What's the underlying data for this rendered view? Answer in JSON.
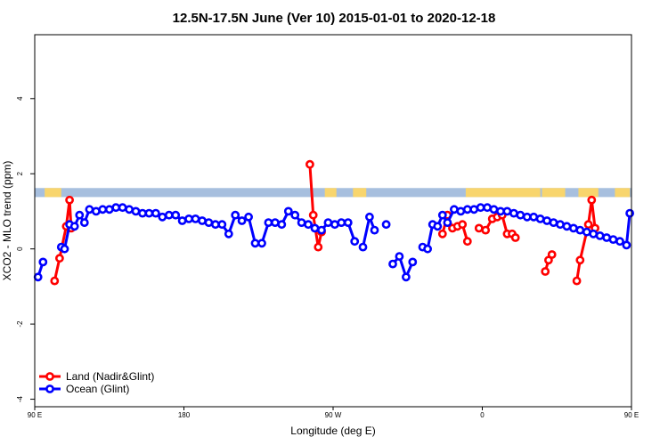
{
  "chart_data": {
    "type": "line",
    "title": "12.5N-17.5N June (Ver 10)   2015-01-01 to 2020-12-18",
    "xlabel": "Longitude (deg E)",
    "ylabel": "XCO2 - MLO trend (ppm)",
    "xlim": [
      90,
      450
    ],
    "ylim": [
      -4.2,
      5.7
    ],
    "x_ticks": [
      {
        "value": 90,
        "label": "90 E"
      },
      {
        "value": 180,
        "label": "180"
      },
      {
        "value": 270,
        "label": "90 W"
      },
      {
        "value": 360,
        "label": "0"
      },
      {
        "value": 450,
        "label": "90 E"
      }
    ],
    "y_ticks": [
      {
        "value": -4,
        "label": "-4"
      },
      {
        "value": -2,
        "label": "-2"
      },
      {
        "value": 0,
        "label": "0"
      },
      {
        "value": 2,
        "label": "2"
      },
      {
        "value": 4,
        "label": "4"
      }
    ],
    "land_band": {
      "y_range": [
        1.38,
        1.62
      ],
      "ocean_color": "#a7bfde",
      "land_color": "#f8d56d",
      "land_segments": [
        [
          96,
          106
        ],
        [
          265,
          272
        ],
        [
          282,
          290
        ],
        [
          350,
          395
        ],
        [
          396,
          410
        ],
        [
          418,
          430
        ],
        [
          440,
          449
        ]
      ]
    },
    "grid": false,
    "legend_position": "bottom-left",
    "series": [
      {
        "name": "Land (Nadir&Glint)",
        "color": "#ff0000",
        "segments": [
          [
            [
              102,
              -0.85
            ],
            [
              105,
              -0.25
            ],
            [
              109,
              0.6
            ],
            [
              111,
              1.3
            ],
            [
              112,
              0.55
            ]
          ],
          [
            [
              256,
              2.25
            ],
            [
              258,
              0.9
            ],
            [
              261,
              0.05
            ],
            [
              263,
              0.45
            ]
          ],
          [
            [
              336,
              0.4
            ],
            [
              339,
              0.9
            ],
            [
              342,
              0.55
            ],
            [
              345,
              0.6
            ],
            [
              348,
              0.65
            ],
            [
              351,
              0.2
            ]
          ],
          [
            [
              358,
              0.55
            ],
            [
              362,
              0.5
            ],
            [
              366,
              0.8
            ],
            [
              369,
              0.85
            ],
            [
              372,
              0.9
            ],
            [
              375,
              0.4
            ],
            [
              378,
              0.4
            ],
            [
              380,
              0.3
            ]
          ],
          [
            [
              398,
              -0.6
            ],
            [
              400,
              -0.3
            ],
            [
              402,
              -0.15
            ]
          ],
          [
            [
              417,
              -0.85
            ],
            [
              419,
              -0.3
            ],
            [
              424,
              0.65
            ],
            [
              426,
              1.3
            ],
            [
              428,
              0.55
            ]
          ]
        ]
      },
      {
        "name": "Ocean (Glint)",
        "color": "#0000ff",
        "segments": [
          [
            [
              92,
              -0.75
            ],
            [
              95,
              -0.35
            ]
          ],
          [
            [
              106,
              0.05
            ],
            [
              108,
              0.0
            ],
            [
              111,
              0.65
            ],
            [
              114,
              0.6
            ],
            [
              117,
              0.9
            ],
            [
              120,
              0.7
            ],
            [
              123,
              1.05
            ],
            [
              127,
              1.0
            ],
            [
              131,
              1.05
            ],
            [
              135,
              1.05
            ],
            [
              139,
              1.1
            ],
            [
              143,
              1.1
            ],
            [
              147,
              1.05
            ],
            [
              151,
              1.0
            ],
            [
              155,
              0.95
            ],
            [
              159,
              0.95
            ],
            [
              163,
              0.95
            ],
            [
              167,
              0.85
            ],
            [
              171,
              0.9
            ],
            [
              175,
              0.9
            ],
            [
              179,
              0.75
            ],
            [
              183,
              0.8
            ],
            [
              187,
              0.8
            ],
            [
              191,
              0.75
            ],
            [
              195,
              0.7
            ],
            [
              199,
              0.65
            ],
            [
              203,
              0.65
            ],
            [
              207,
              0.4
            ],
            [
              211,
              0.9
            ],
            [
              215,
              0.75
            ],
            [
              219,
              0.85
            ],
            [
              223,
              0.15
            ],
            [
              227,
              0.15
            ],
            [
              231,
              0.7
            ],
            [
              235,
              0.7
            ],
            [
              239,
              0.65
            ],
            [
              243,
              1.0
            ],
            [
              247,
              0.9
            ],
            [
              251,
              0.7
            ],
            [
              255,
              0.65
            ],
            [
              259,
              0.55
            ],
            [
              263,
              0.5
            ],
            [
              267,
              0.7
            ],
            [
              271,
              0.65
            ],
            [
              275,
              0.7
            ],
            [
              279,
              0.7
            ],
            [
              283,
              0.2
            ]
          ],
          [
            [
              288,
              0.05
            ],
            [
              292,
              0.85
            ],
            [
              295,
              0.5
            ]
          ],
          [
            [
              302,
              0.65
            ]
          ],
          [
            [
              306,
              -0.4
            ],
            [
              310,
              -0.2
            ],
            [
              314,
              -0.75
            ],
            [
              318,
              -0.35
            ]
          ],
          [
            [
              324,
              0.05
            ],
            [
              327,
              0.0
            ],
            [
              330,
              0.65
            ],
            [
              333,
              0.6
            ],
            [
              336,
              0.9
            ],
            [
              339,
              0.7
            ],
            [
              343,
              1.05
            ],
            [
              347,
              1.0
            ],
            [
              351,
              1.05
            ],
            [
              355,
              1.05
            ],
            [
              359,
              1.1
            ],
            [
              363,
              1.1
            ],
            [
              367,
              1.05
            ],
            [
              371,
              1.0
            ],
            [
              375,
              1.0
            ],
            [
              379,
              0.95
            ],
            [
              383,
              0.9
            ],
            [
              387,
              0.85
            ],
            [
              391,
              0.85
            ],
            [
              395,
              0.8
            ],
            [
              399,
              0.75
            ],
            [
              403,
              0.7
            ],
            [
              407,
              0.65
            ],
            [
              411,
              0.6
            ],
            [
              415,
              0.55
            ],
            [
              419,
              0.5
            ],
            [
              423,
              0.45
            ],
            [
              427,
              0.4
            ],
            [
              431,
              0.35
            ],
            [
              435,
              0.3
            ],
            [
              439,
              0.25
            ],
            [
              443,
              0.2
            ],
            [
              447,
              0.1
            ],
            [
              449,
              0.95
            ]
          ]
        ]
      }
    ]
  }
}
